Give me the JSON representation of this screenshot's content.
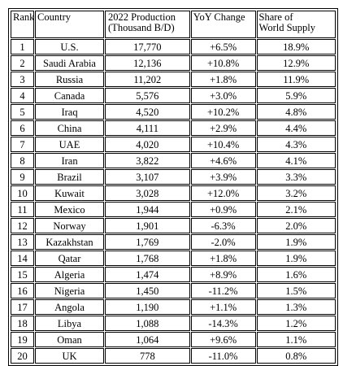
{
  "headers": {
    "rank": "Rank",
    "country": "Country",
    "production_line1": "2022 Production",
    "production_line2": "(Thousand B/D)",
    "yoy": "YoY Change",
    "share_line1": "Share of",
    "share_line2": "World Supply"
  },
  "rows": [
    {
      "rank": "1",
      "country": "U.S.",
      "production": "17,770",
      "yoy": "+6.5%",
      "share": "18.9%"
    },
    {
      "rank": "2",
      "country": "Saudi Arabia",
      "production": "12,136",
      "yoy": "+10.8%",
      "share": "12.9%"
    },
    {
      "rank": "3",
      "country": "Russia",
      "production": "11,202",
      "yoy": "+1.8%",
      "share": "11.9%"
    },
    {
      "rank": "4",
      "country": "Canada",
      "production": "5,576",
      "yoy": "+3.0%",
      "share": "5.9%"
    },
    {
      "rank": "5",
      "country": "Iraq",
      "production": "4,520",
      "yoy": "+10.2%",
      "share": "4.8%"
    },
    {
      "rank": "6",
      "country": "China",
      "production": "4,111",
      "yoy": "+2.9%",
      "share": "4.4%"
    },
    {
      "rank": "7",
      "country": "UAE",
      "production": "4,020",
      "yoy": "+10.4%",
      "share": "4.3%"
    },
    {
      "rank": "8",
      "country": "Iran",
      "production": "3,822",
      "yoy": "+4.6%",
      "share": "4.1%"
    },
    {
      "rank": "9",
      "country": "Brazil",
      "production": "3,107",
      "yoy": "+3.9%",
      "share": "3.3%"
    },
    {
      "rank": "10",
      "country": "Kuwait",
      "production": "3,028",
      "yoy": "+12.0%",
      "share": "3.2%"
    },
    {
      "rank": "11",
      "country": "Mexico",
      "production": "1,944",
      "yoy": "+0.9%",
      "share": "2.1%"
    },
    {
      "rank": "12",
      "country": "Norway",
      "production": "1,901",
      "yoy": "-6.3%",
      "share": "2.0%"
    },
    {
      "rank": "13",
      "country": "Kazakhstan",
      "production": "1,769",
      "yoy": "-2.0%",
      "share": "1.9%"
    },
    {
      "rank": "14",
      "country": "Qatar",
      "production": "1,768",
      "yoy": "+1.8%",
      "share": "1.9%"
    },
    {
      "rank": "15",
      "country": "Algeria",
      "production": "1,474",
      "yoy": "+8.9%",
      "share": "1.6%"
    },
    {
      "rank": "16",
      "country": "Nigeria",
      "production": "1,450",
      "yoy": "-11.2%",
      "share": "1.5%"
    },
    {
      "rank": "17",
      "country": "Angola",
      "production": "1,190",
      "yoy": "+1.1%",
      "share": "1.3%"
    },
    {
      "rank": "18",
      "country": "Libya",
      "production": "1,088",
      "yoy": "-14.3%",
      "share": "1.2%"
    },
    {
      "rank": "19",
      "country": "Oman",
      "production": "1,064",
      "yoy": "+9.6%",
      "share": "1.1%"
    },
    {
      "rank": "20",
      "country": "UK",
      "production": "778",
      "yoy": "-11.0%",
      "share": "0.8%"
    }
  ]
}
